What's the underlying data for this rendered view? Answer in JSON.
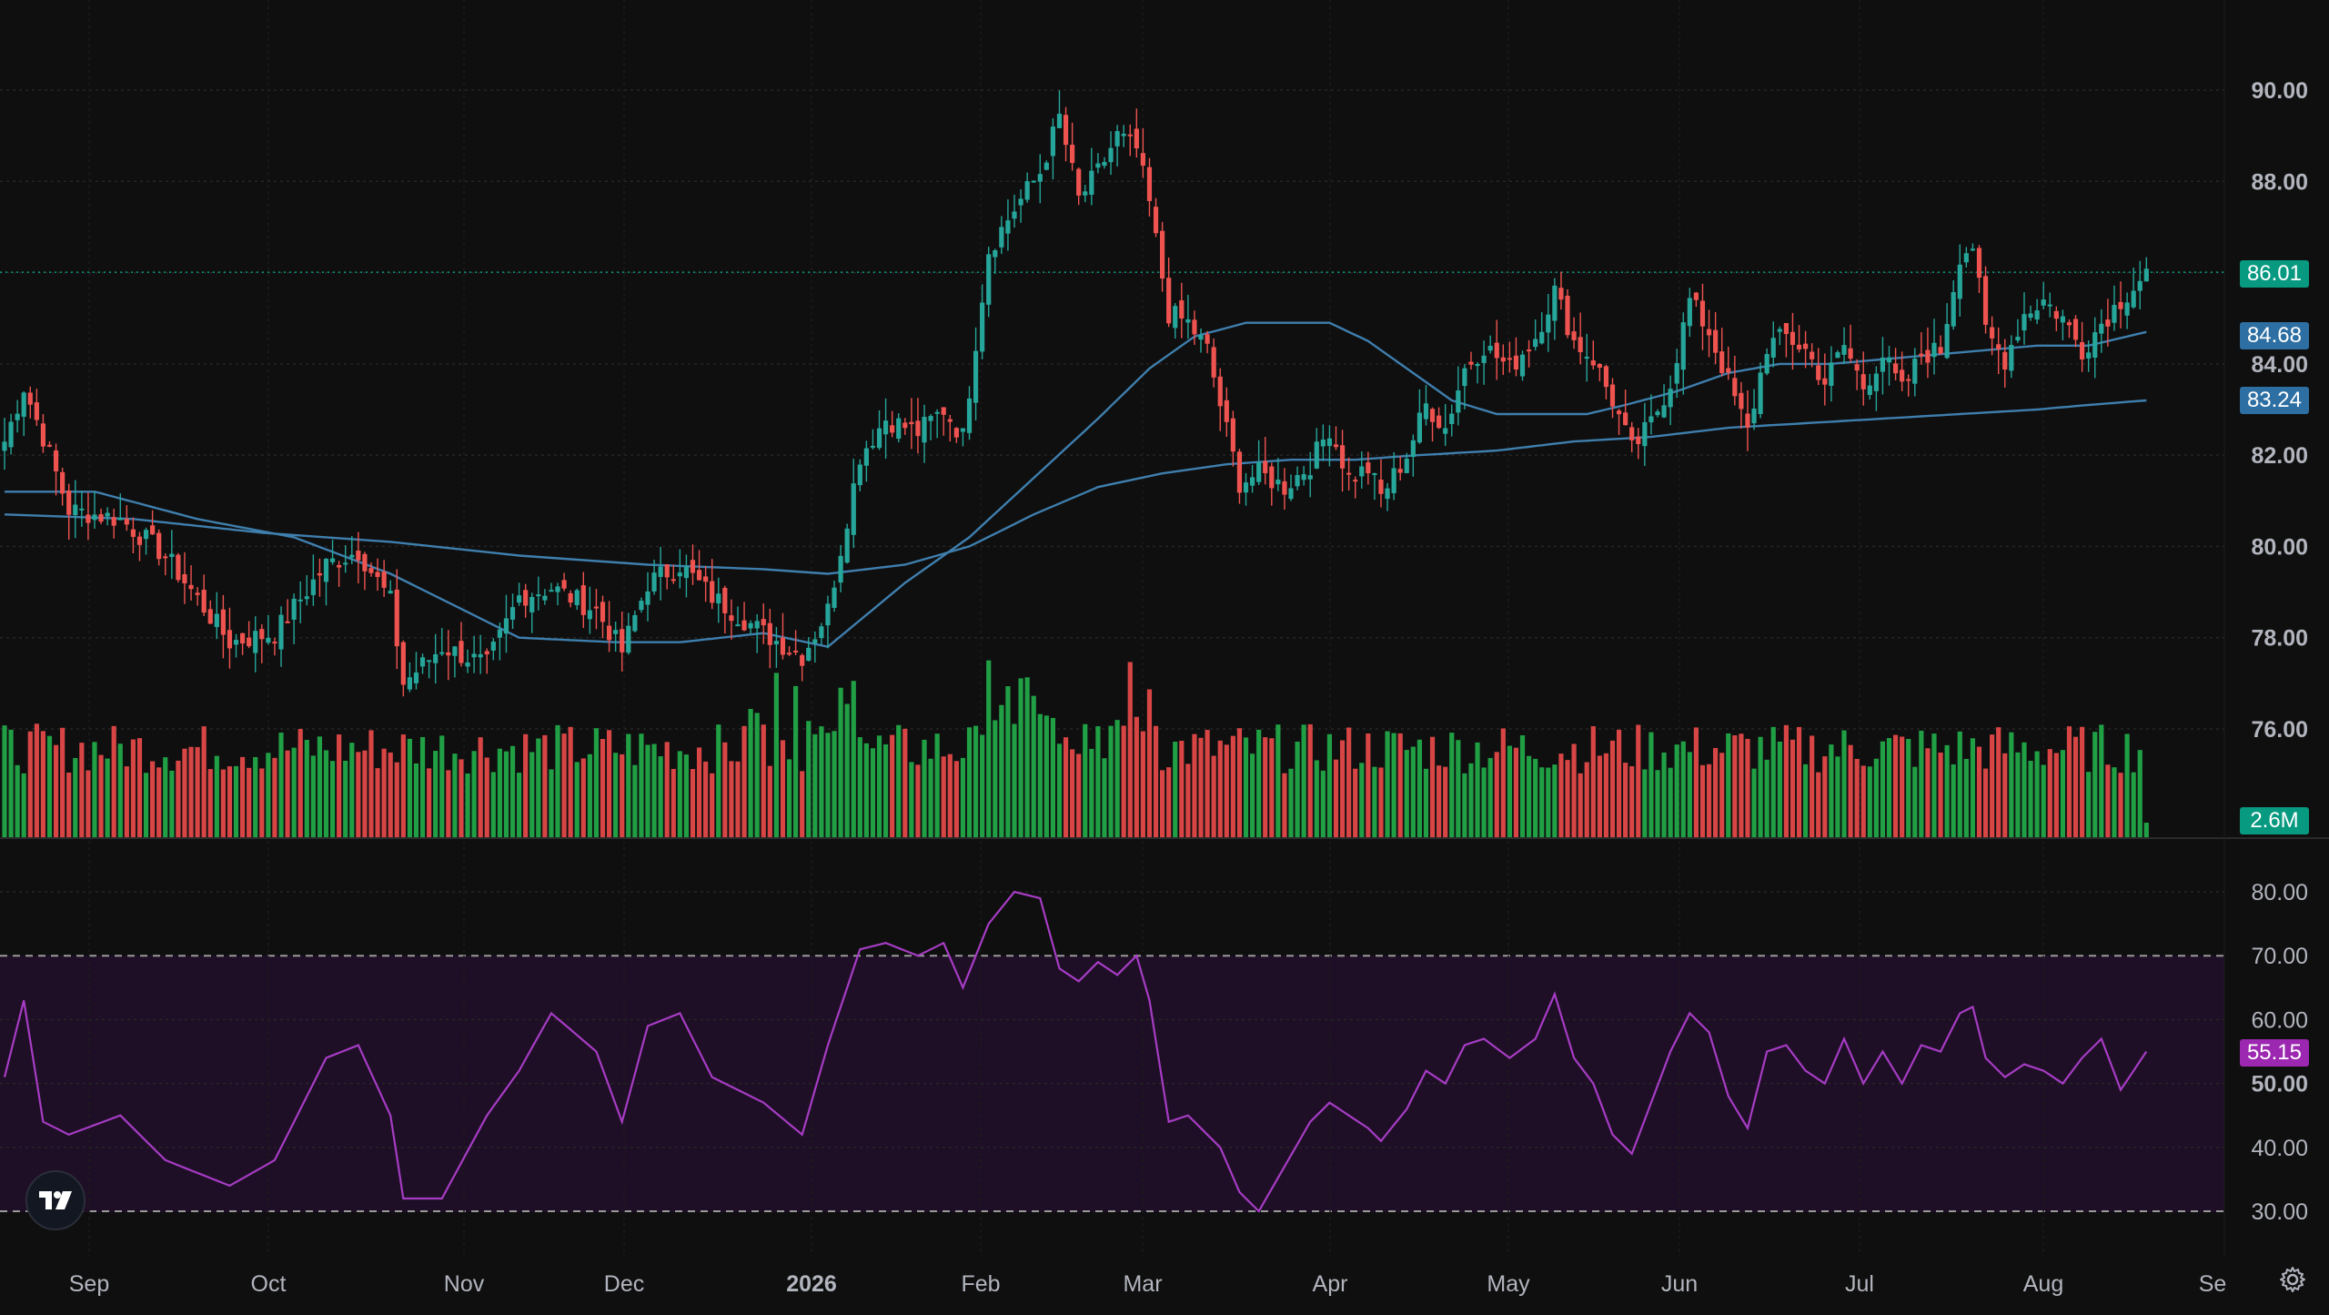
{
  "price_axis": {
    "ticks": [
      "90.00",
      "88.00",
      "86.00",
      "84.00",
      "82.00",
      "80.00",
      "78.00",
      "76.00"
    ],
    "badges": {
      "last_price": {
        "label": "86.01",
        "color": "#089981"
      },
      "ma_fast": {
        "label": "84.68",
        "color": "#2e6fa3"
      },
      "ma_slow": {
        "label": "83.24",
        "color": "#2e6fa3"
      },
      "volume": {
        "label": "2.6M",
        "color": "#089981"
      },
      "rsi": {
        "label": "55.15",
        "color": "#9c27b0"
      }
    }
  },
  "rsi_axis": {
    "ticks": [
      "80.00",
      "70.00",
      "60.00",
      "50.00",
      "40.00",
      "30.00"
    ]
  },
  "time_axis": {
    "labels": [
      "Sep",
      "Oct",
      "Nov",
      "Dec",
      "2026",
      "Feb",
      "Mar",
      "Apr",
      "May",
      "Jun",
      "Jul",
      "Aug",
      "Se"
    ]
  },
  "colors": {
    "up": "#26a69a",
    "down": "#ef5350",
    "vol_up": "#22ab4a",
    "vol_down": "#e84a4a",
    "ma": "#3f7fae",
    "rsi": "#a63cc4",
    "rsi_band": "#1f0f26"
  },
  "chart_data": {
    "type": "candlestick",
    "price_range": [
      74.0,
      91.0
    ],
    "rsi_range": [
      25,
      85
    ],
    "rsi_band": [
      30,
      70
    ],
    "last_price": 86.01,
    "ma_fast_last": 84.68,
    "ma_slow_last": 83.24,
    "volume_last": "2.6M",
    "rsi_last": 55.15,
    "months": [
      "Sep",
      "Oct",
      "Nov",
      "Dec",
      "2026",
      "Feb",
      "Mar",
      "Apr",
      "May",
      "Jun",
      "Jul",
      "Aug",
      "Se"
    ],
    "close_keypoints": [
      [
        0,
        82.3
      ],
      [
        3,
        83.5
      ],
      [
        6,
        82.4
      ],
      [
        10,
        80.8
      ],
      [
        18,
        80.6
      ],
      [
        25,
        79.8
      ],
      [
        35,
        77.9
      ],
      [
        42,
        78.1
      ],
      [
        50,
        79.6
      ],
      [
        55,
        79.9
      ],
      [
        60,
        78.8
      ],
      [
        62,
        77.0
      ],
      [
        68,
        77.8
      ],
      [
        75,
        77.4
      ],
      [
        80,
        78.9
      ],
      [
        85,
        79.1
      ],
      [
        92,
        78.6
      ],
      [
        96,
        77.7
      ],
      [
        100,
        79.2
      ],
      [
        105,
        79.6
      ],
      [
        110,
        78.9
      ],
      [
        118,
        78.1
      ],
      [
        124,
        77.6
      ],
      [
        128,
        78.6
      ],
      [
        133,
        82.0
      ],
      [
        137,
        82.8
      ],
      [
        142,
        82.5
      ],
      [
        146,
        83.0
      ],
      [
        149,
        82.4
      ],
      [
        151,
        84.5
      ],
      [
        153,
        86.5
      ],
      [
        157,
        87.4
      ],
      [
        161,
        88.2
      ],
      [
        164,
        89.4
      ],
      [
        167,
        87.6
      ],
      [
        170,
        88.2
      ],
      [
        173,
        89.0
      ],
      [
        176,
        88.7
      ],
      [
        178,
        87.5
      ],
      [
        181,
        85.1
      ],
      [
        184,
        84.9
      ],
      [
        187,
        84.3
      ],
      [
        189,
        83.1
      ],
      [
        192,
        81.4
      ],
      [
        195,
        81.6
      ],
      [
        199,
        81.3
      ],
      [
        203,
        81.8
      ],
      [
        206,
        82.6
      ],
      [
        209,
        81.5
      ],
      [
        212,
        81.7
      ],
      [
        214,
        81.1
      ],
      [
        218,
        82.0
      ],
      [
        221,
        83.1
      ],
      [
        224,
        82.6
      ],
      [
        227,
        83.9
      ],
      [
        230,
        84.4
      ],
      [
        234,
        83.9
      ],
      [
        238,
        84.6
      ],
      [
        241,
        85.6
      ],
      [
        244,
        84.5
      ],
      [
        247,
        84.1
      ],
      [
        250,
        83.2
      ],
      [
        253,
        82.1
      ],
      [
        256,
        82.7
      ],
      [
        259,
        83.6
      ],
      [
        262,
        85.4
      ],
      [
        265,
        84.7
      ],
      [
        268,
        83.6
      ],
      [
        271,
        82.5
      ],
      [
        274,
        84.4
      ],
      [
        277,
        84.6
      ],
      [
        280,
        84.3
      ],
      [
        283,
        83.6
      ],
      [
        286,
        84.4
      ],
      [
        289,
        83.5
      ],
      [
        292,
        84.2
      ],
      [
        295,
        83.4
      ],
      [
        298,
        84.2
      ],
      [
        301,
        84.3
      ],
      [
        304,
        86.4
      ],
      [
        306,
        86.6
      ],
      [
        308,
        84.7
      ],
      [
        311,
        84.1
      ],
      [
        314,
        85.1
      ],
      [
        317,
        85.4
      ],
      [
        320,
        85.0
      ],
      [
        323,
        84.3
      ],
      [
        326,
        84.9
      ],
      [
        329,
        85.4
      ],
      [
        333,
        86.0
      ]
    ],
    "rsi_keypoints": [
      [
        0,
        51
      ],
      [
        3,
        63
      ],
      [
        6,
        44
      ],
      [
        10,
        42
      ],
      [
        18,
        45
      ],
      [
        25,
        38
      ],
      [
        35,
        34
      ],
      [
        42,
        38
      ],
      [
        50,
        54
      ],
      [
        55,
        56
      ],
      [
        60,
        45
      ],
      [
        62,
        32
      ],
      [
        68,
        32
      ],
      [
        75,
        45
      ],
      [
        80,
        52
      ],
      [
        85,
        61
      ],
      [
        92,
        55
      ],
      [
        96,
        44
      ],
      [
        100,
        59
      ],
      [
        105,
        61
      ],
      [
        110,
        51
      ],
      [
        118,
        47
      ],
      [
        124,
        42
      ],
      [
        128,
        56
      ],
      [
        133,
        71
      ],
      [
        137,
        72
      ],
      [
        142,
        70
      ],
      [
        146,
        72
      ],
      [
        149,
        65
      ],
      [
        151,
        70
      ],
      [
        153,
        75
      ],
      [
        157,
        80
      ],
      [
        161,
        79
      ],
      [
        164,
        68
      ],
      [
        167,
        66
      ],
      [
        170,
        69
      ],
      [
        173,
        67
      ],
      [
        176,
        70
      ],
      [
        178,
        63
      ],
      [
        181,
        44
      ],
      [
        184,
        45
      ],
      [
        187,
        42
      ],
      [
        189,
        40
      ],
      [
        192,
        33
      ],
      [
        195,
        30
      ],
      [
        199,
        37
      ],
      [
        203,
        44
      ],
      [
        206,
        47
      ],
      [
        209,
        45
      ],
      [
        212,
        43
      ],
      [
        214,
        41
      ],
      [
        218,
        46
      ],
      [
        221,
        52
      ],
      [
        224,
        50
      ],
      [
        227,
        56
      ],
      [
        230,
        57
      ],
      [
        234,
        54
      ],
      [
        238,
        57
      ],
      [
        241,
        64
      ],
      [
        244,
        54
      ],
      [
        247,
        50
      ],
      [
        250,
        42
      ],
      [
        253,
        39
      ],
      [
        256,
        47
      ],
      [
        259,
        55
      ],
      [
        262,
        61
      ],
      [
        265,
        58
      ],
      [
        268,
        48
      ],
      [
        271,
        43
      ],
      [
        274,
        55
      ],
      [
        277,
        56
      ],
      [
        280,
        52
      ],
      [
        283,
        50
      ],
      [
        286,
        57
      ],
      [
        289,
        50
      ],
      [
        292,
        55
      ],
      [
        295,
        50
      ],
      [
        298,
        56
      ],
      [
        301,
        55
      ],
      [
        304,
        61
      ],
      [
        306,
        62
      ],
      [
        308,
        54
      ],
      [
        311,
        51
      ],
      [
        314,
        53
      ],
      [
        317,
        52
      ],
      [
        320,
        50
      ],
      [
        323,
        54
      ],
      [
        326,
        57
      ],
      [
        329,
        49
      ],
      [
        333,
        55
      ]
    ],
    "ma_fast_keypoints": [
      [
        0,
        81.2
      ],
      [
        14,
        81.2
      ],
      [
        30,
        80.6
      ],
      [
        45,
        80.2
      ],
      [
        60,
        79.4
      ],
      [
        80,
        78.0
      ],
      [
        95,
        77.9
      ],
      [
        105,
        77.9
      ],
      [
        118,
        78.1
      ],
      [
        128,
        77.8
      ],
      [
        140,
        79.2
      ],
      [
        150,
        80.2
      ],
      [
        160,
        81.5
      ],
      [
        170,
        82.8
      ],
      [
        178,
        83.9
      ],
      [
        185,
        84.6
      ],
      [
        193,
        84.9
      ],
      [
        200,
        84.9
      ],
      [
        206,
        84.9
      ],
      [
        212,
        84.5
      ],
      [
        218,
        83.9
      ],
      [
        225,
        83.2
      ],
      [
        232,
        82.9
      ],
      [
        240,
        82.9
      ],
      [
        246,
        82.9
      ],
      [
        252,
        83.1
      ],
      [
        260,
        83.4
      ],
      [
        268,
        83.8
      ],
      [
        276,
        84.0
      ],
      [
        284,
        84.0
      ],
      [
        292,
        84.1
      ],
      [
        300,
        84.2
      ],
      [
        308,
        84.3
      ],
      [
        316,
        84.4
      ],
      [
        324,
        84.4
      ],
      [
        333,
        84.7
      ]
    ],
    "ma_slow_keypoints": [
      [
        0,
        80.7
      ],
      [
        20,
        80.6
      ],
      [
        40,
        80.3
      ],
      [
        60,
        80.1
      ],
      [
        80,
        79.8
      ],
      [
        100,
        79.6
      ],
      [
        118,
        79.5
      ],
      [
        128,
        79.4
      ],
      [
        140,
        79.6
      ],
      [
        150,
        80.0
      ],
      [
        160,
        80.7
      ],
      [
        170,
        81.3
      ],
      [
        180,
        81.6
      ],
      [
        190,
        81.8
      ],
      [
        200,
        81.9
      ],
      [
        210,
        81.9
      ],
      [
        220,
        82.0
      ],
      [
        232,
        82.1
      ],
      [
        244,
        82.3
      ],
      [
        256,
        82.4
      ],
      [
        268,
        82.6
      ],
      [
        280,
        82.7
      ],
      [
        292,
        82.8
      ],
      [
        304,
        82.9
      ],
      [
        316,
        83.0
      ],
      [
        324,
        83.1
      ],
      [
        333,
        83.2
      ]
    ]
  }
}
